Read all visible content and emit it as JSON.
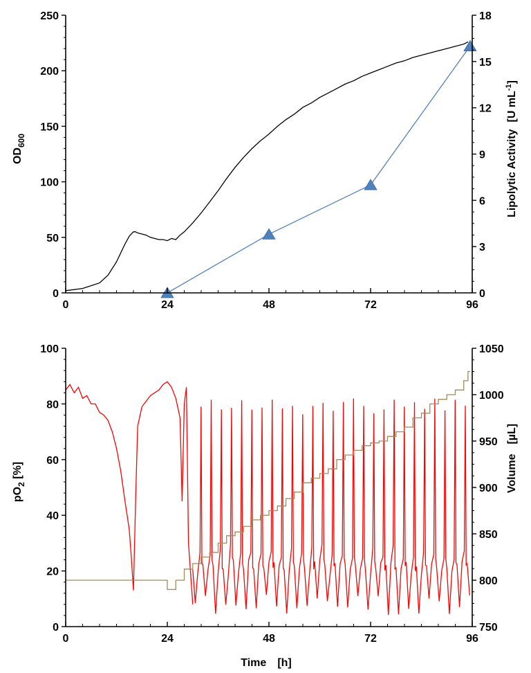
{
  "chart_data": [
    {
      "type": "line",
      "x_ticks": [
        "0",
        "24",
        "48",
        "72",
        "96"
      ],
      "xlim": [
        0,
        96
      ],
      "ylabel_left": "OD",
      "ylabel_left_sub": "600",
      "ylim_left": [
        0,
        250
      ],
      "y_ticks_left": [
        "0",
        "50",
        "100",
        "150",
        "200",
        "250"
      ],
      "ylabel_right_main": "Lipolytic Activity",
      "ylabel_right_unit_open": "[U mL",
      "ylabel_right_unit_sup": "-1",
      "ylabel_right_unit_close": "]",
      "ylim_right": [
        0,
        18
      ],
      "y_ticks_right": [
        "0",
        "3",
        "6",
        "9",
        "12",
        "15",
        "18"
      ],
      "series": [
        {
          "axis": "left",
          "color": "#000000",
          "marker": "none",
          "x": [
            0,
            4,
            8,
            10,
            12,
            13,
            14,
            15,
            16,
            16.5,
            17,
            18,
            19,
            20,
            21,
            22,
            23,
            24,
            25,
            26,
            27,
            28,
            30,
            32,
            34,
            36,
            38,
            40,
            42,
            44,
            46,
            48,
            50,
            52,
            54,
            56,
            58,
            60,
            62,
            64,
            66,
            68,
            70,
            72,
            74,
            76,
            78,
            80,
            82,
            84,
            86,
            88,
            90,
            92,
            94,
            95
          ],
          "y": [
            2,
            4,
            9,
            16,
            28,
            36,
            44,
            51,
            55,
            55,
            54,
            53,
            52,
            50,
            49,
            48,
            48,
            47,
            49,
            48,
            52,
            55,
            63,
            72,
            82,
            92,
            103,
            113,
            122,
            130,
            137,
            143,
            150,
            156,
            161,
            167,
            171,
            176,
            180,
            184,
            188,
            191,
            195,
            198,
            201,
            204,
            207,
            209,
            212,
            214,
            216,
            218,
            220,
            222,
            224,
            226
          ]
        },
        {
          "axis": "right",
          "color": "#4f81bd",
          "marker": "triangle",
          "x": [
            24,
            48,
            72,
            95.5
          ],
          "y": [
            0,
            3.8,
            7.0,
            16.0
          ]
        }
      ]
    },
    {
      "type": "line",
      "x_ticks": [
        "0",
        "24",
        "48",
        "72",
        "96"
      ],
      "xlabel": "Time",
      "xlabel_unit": "[h]",
      "xlim": [
        0,
        96
      ],
      "ylabel_left_main": "pO",
      "ylabel_left_sub": "2",
      "ylabel_left_unit": " [%]",
      "ylim_left": [
        0,
        100
      ],
      "y_ticks_left": [
        "0",
        "20",
        "40",
        "60",
        "80",
        "100"
      ],
      "ylabel_right_main": "Volume",
      "ylabel_right_unit": "[µL]",
      "ylim_right": [
        750,
        1050
      ],
      "y_ticks_right": [
        "750",
        "800",
        "850",
        "900",
        "950",
        "1000",
        "1050"
      ],
      "series": [
        {
          "axis": "left",
          "color": "#ff0000",
          "marker": "none",
          "x": [
            0,
            1,
            2,
            3,
            4,
            5,
            6,
            7,
            8,
            9,
            10,
            11,
            12,
            13,
            14,
            15,
            15.5,
            16,
            16.5,
            17,
            18,
            19,
            20,
            21,
            22,
            23,
            24,
            25,
            26,
            27,
            27.5,
            28,
            28.5,
            29,
            30
          ],
          "y": [
            85,
            87,
            84,
            86,
            82,
            83,
            80,
            80,
            77,
            76,
            74,
            70,
            64,
            56,
            45,
            35,
            25,
            13,
            45,
            72,
            79,
            81,
            83,
            84,
            85,
            87,
            88,
            86,
            82,
            75,
            45,
            80,
            86,
            30,
            8
          ]
        },
        {
          "axis": "left",
          "color": "#ff0000",
          "marker": "none",
          "oscillation": true,
          "x_start": 30,
          "x_end": 96,
          "period": 2.4,
          "peak_y": 82,
          "trough_y": 4,
          "mid_y": 20
        },
        {
          "axis": "right",
          "color": "#a08a5a",
          "marker": "none",
          "step": true,
          "x": [
            0,
            24,
            25,
            26,
            28,
            30,
            32,
            34,
            36,
            38,
            40,
            42,
            44,
            46,
            48,
            50,
            52,
            54,
            56,
            58,
            60,
            62,
            64,
            66,
            68,
            70,
            72,
            74,
            76,
            78,
            80,
            82,
            84,
            86,
            88,
            90,
            92,
            94,
            95
          ],
          "y": [
            800,
            790,
            790,
            800,
            812,
            818,
            825,
            830,
            840,
            848,
            852,
            858,
            865,
            870,
            875,
            880,
            888,
            895,
            905,
            910,
            915,
            920,
            930,
            935,
            940,
            945,
            948,
            950,
            955,
            960,
            965,
            975,
            980,
            990,
            995,
            1000,
            1005,
            1015,
            1025
          ]
        }
      ]
    }
  ]
}
